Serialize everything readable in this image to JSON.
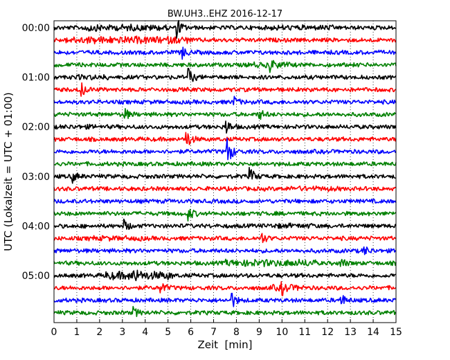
{
  "chart_data": {
    "type": "line",
    "title": "BW.UH3..EHZ 2016-12-17",
    "xlabel": "Zeit  [min]",
    "ylabel": "UTC (Lokalzeit = UTC + 01:00)",
    "xlim": [
      0,
      15
    ],
    "x_ticks": [
      "0",
      "1",
      "2",
      "3",
      "4",
      "5",
      "6",
      "7",
      "8",
      "9",
      "10",
      "11",
      "12",
      "13",
      "14",
      "15"
    ],
    "y_tick_labels": [
      "00:00",
      "01:00",
      "02:00",
      "03:00",
      "04:00",
      "05:00"
    ],
    "traces_per_hour": 4,
    "trace_minutes": 15,
    "grid": "vertical dotted",
    "colors": [
      "#000000",
      "#ff0000",
      "#0000ff",
      "#008000"
    ],
    "trace_count": 24,
    "events": [
      {
        "trace": 0,
        "minute": 1.3,
        "amp": 0.6
      },
      {
        "trace": 0,
        "minute": 5.4,
        "amp": 1.0
      },
      {
        "trace": 2,
        "minute": 5.6,
        "amp": 0.7
      },
      {
        "trace": 3,
        "minute": 9.5,
        "amp": 0.6
      },
      {
        "trace": 4,
        "minute": 5.9,
        "amp": 0.9
      },
      {
        "trace": 5,
        "minute": 1.2,
        "amp": 0.7
      },
      {
        "trace": 6,
        "minute": 7.9,
        "amp": 0.5
      },
      {
        "trace": 7,
        "minute": 3.1,
        "amp": 0.6
      },
      {
        "trace": 7,
        "minute": 9.0,
        "amp": 0.6
      },
      {
        "trace": 8,
        "minute": 7.5,
        "amp": 1.0
      },
      {
        "trace": 9,
        "minute": 5.8,
        "amp": 1.1
      },
      {
        "trace": 10,
        "minute": 7.6,
        "amp": 1.6
      },
      {
        "trace": 12,
        "minute": 0.8,
        "amp": 0.6
      },
      {
        "trace": 12,
        "minute": 8.6,
        "amp": 0.9
      },
      {
        "trace": 15,
        "minute": 5.9,
        "amp": 0.7
      },
      {
        "trace": 16,
        "minute": 3.1,
        "amp": 0.6
      },
      {
        "trace": 17,
        "minute": 9.1,
        "amp": 0.6
      },
      {
        "trace": 18,
        "minute": 13.6,
        "amp": 0.5
      },
      {
        "trace": 19,
        "minute": 12.6,
        "amp": 0.5
      },
      {
        "trace": 20,
        "minute": 3.5,
        "amp": 0.7
      },
      {
        "trace": 21,
        "minute": 4.7,
        "amp": 0.6
      },
      {
        "trace": 21,
        "minute": 10.0,
        "amp": 0.6
      },
      {
        "trace": 22,
        "minute": 7.8,
        "amp": 0.8
      },
      {
        "trace": 22,
        "minute": 12.6,
        "amp": 0.6
      },
      {
        "trace": 23,
        "minute": 3.5,
        "amp": 0.5
      }
    ],
    "noisy_segments": [
      {
        "trace": 0,
        "from": 1.5,
        "to": 5.0,
        "level": 1.6
      },
      {
        "trace": 0,
        "from": 9.5,
        "to": 12.5,
        "level": 1.3
      },
      {
        "trace": 1,
        "from": 0.5,
        "to": 6.0,
        "level": 1.8
      },
      {
        "trace": 3,
        "from": 8.5,
        "to": 10.5,
        "level": 1.4
      },
      {
        "trace": 4,
        "from": 0.8,
        "to": 2.5,
        "level": 1.3
      },
      {
        "trace": 8,
        "from": 0.5,
        "to": 2.0,
        "level": 1.2
      },
      {
        "trace": 13,
        "from": 10.0,
        "to": 12.5,
        "level": 1.3
      },
      {
        "trace": 16,
        "from": 9.5,
        "to": 11.5,
        "level": 1.3
      },
      {
        "trace": 17,
        "from": 1.5,
        "to": 4.0,
        "level": 1.3
      },
      {
        "trace": 19,
        "from": 7.5,
        "to": 11.5,
        "level": 1.8
      },
      {
        "trace": 20,
        "from": 2.2,
        "to": 5.2,
        "level": 2.0
      },
      {
        "trace": 21,
        "from": 9.5,
        "to": 11.0,
        "level": 1.5
      }
    ]
  }
}
